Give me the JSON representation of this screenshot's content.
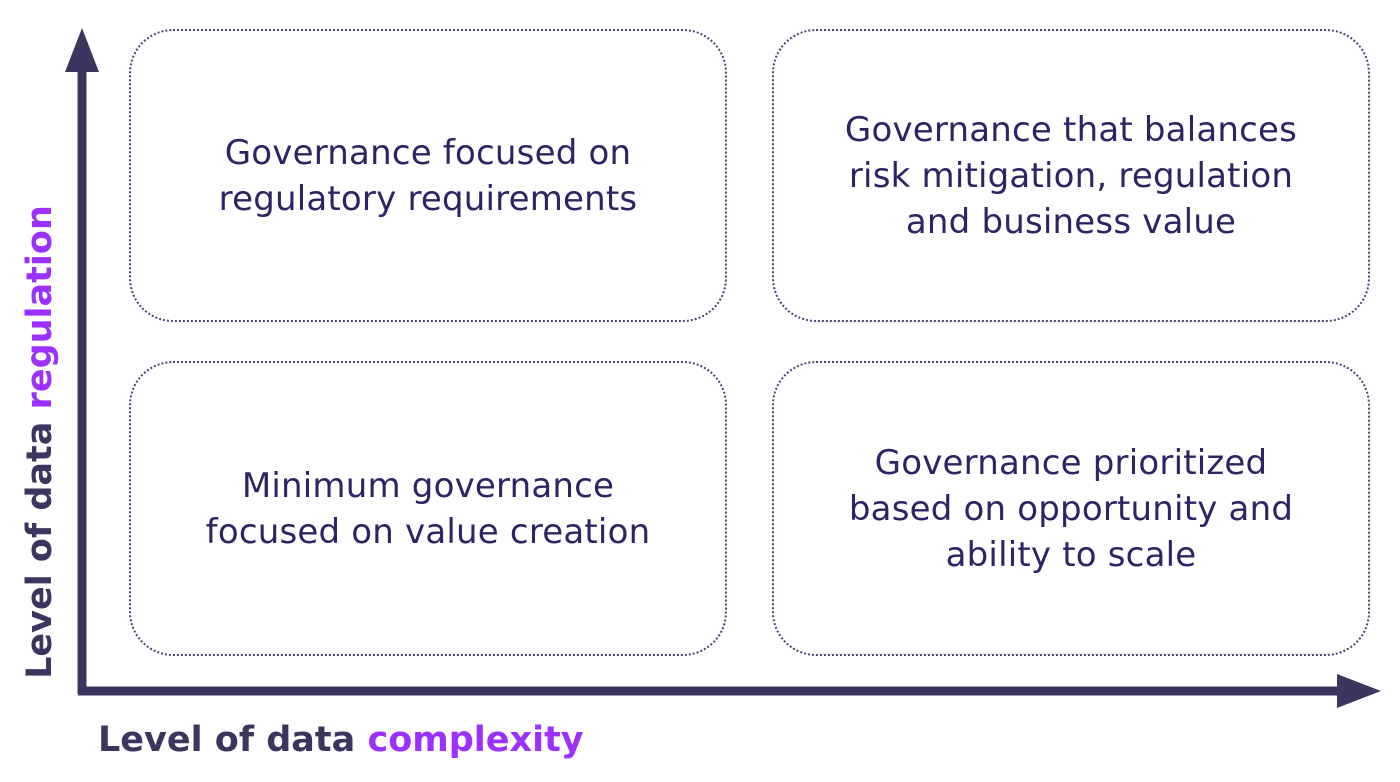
{
  "colors": {
    "axis": "#3b3560",
    "label_base": "#3b3560",
    "label_accent": "#9b30ff",
    "quadrant_text": "#2c2565",
    "quadrant_border": "#4a4470"
  },
  "axes": {
    "x": {
      "label_prefix": "Level of data",
      "label_accent": "complexity"
    },
    "y": {
      "label_prefix": "Level of data",
      "label_accent": "regulation"
    }
  },
  "quadrants": {
    "top_left": "Governance focused on\nregulatory requirements",
    "top_right": "Governance that balances\nrisk mitigation, regulation\nand business value",
    "bottom_left": "Minimum governance\nfocused on value creation",
    "bottom_right": "Governance prioritized\nbased on opportunity and\nability to scale"
  }
}
